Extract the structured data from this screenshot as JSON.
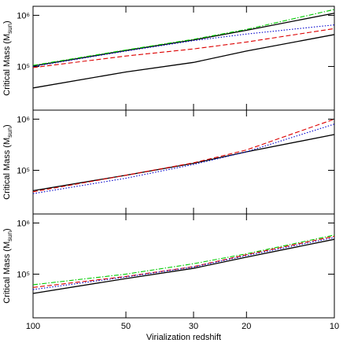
{
  "chart_data": [
    {
      "type": "line",
      "xscale": "log1p",
      "yscale": "log",
      "xlim": [
        100,
        10
      ],
      "xticks": [
        100,
        50,
        30,
        20,
        10
      ],
      "show_xtick_labels": false,
      "ylim": [
        14000,
        1500000
      ],
      "yticks": [
        {
          "value": 100000,
          "label": "10⁵"
        },
        {
          "value": 1000000,
          "label": "10⁶"
        }
      ],
      "y_label": {
        "text": "Critical Mass (M",
        "sub": "sun",
        "end": ")"
      },
      "x": [
        100,
        50,
        30,
        20,
        10
      ],
      "series": [
        {
          "color": "#000000",
          "style": "solid",
          "values": [
            38000,
            78000,
            120000,
            200000,
            420000
          ]
        },
        {
          "color": "#000000",
          "style": "solid",
          "values": [
            102000,
            205000,
            330000,
            510000,
            1100000
          ]
        },
        {
          "color": "#00cc00",
          "style": "dashdot",
          "values": [
            105000,
            210000,
            340000,
            530000,
            1300000
          ]
        },
        {
          "color": "#0000cc",
          "style": "dotted",
          "values": [
            100000,
            200000,
            320000,
            430000,
            650000
          ]
        },
        {
          "color": "#dd0000",
          "style": "dashed",
          "values": [
            95000,
            160000,
            220000,
            300000,
            550000
          ]
        }
      ]
    },
    {
      "type": "line",
      "xscale": "log1p",
      "yscale": "log",
      "xlim": [
        100,
        10
      ],
      "xticks": [
        100,
        50,
        30,
        20,
        10
      ],
      "show_xtick_labels": false,
      "ylim": [
        14000,
        1500000
      ],
      "yticks": [
        {
          "value": 100000,
          "label": "10⁵"
        },
        {
          "value": 1000000,
          "label": "10⁶"
        }
      ],
      "y_label": {
        "text": "Critical Mass (M",
        "sub": "sun",
        "end": ")"
      },
      "x": [
        100,
        50,
        30,
        20,
        10
      ],
      "series": [
        {
          "color": "#000000",
          "style": "solid",
          "values": [
            40000,
            80000,
            137000,
            230000,
            500000
          ]
        },
        {
          "color": "#dd0000",
          "style": "dashed",
          "values": [
            38000,
            80000,
            140000,
            250000,
            1000000
          ]
        },
        {
          "color": "#0000cc",
          "style": "dotted",
          "values": [
            35000,
            70000,
            130000,
            230000,
            800000
          ]
        }
      ]
    },
    {
      "type": "line",
      "xscale": "log1p",
      "yscale": "log",
      "xlim": [
        100,
        10
      ],
      "xticks": [
        100,
        50,
        30,
        20,
        10
      ],
      "show_xtick_labels": true,
      "ylim": [
        14000,
        1500000
      ],
      "yticks": [
        {
          "value": 100000,
          "label": "10⁵"
        },
        {
          "value": 1000000,
          "label": "10⁶"
        }
      ],
      "y_label": {
        "text": "Critical Mass (M",
        "sub": "sun",
        "end": ")"
      },
      "x_label": "Virialization redshift",
      "x": [
        100,
        50,
        30,
        20,
        10
      ],
      "series": [
        {
          "color": "#000000",
          "style": "solid",
          "values": [
            42000,
            82000,
            130000,
            215000,
            480000
          ]
        },
        {
          "color": "#00cc00",
          "style": "dashdot",
          "values": [
            62000,
            100000,
            160000,
            250000,
            580000
          ]
        },
        {
          "color": "#dd0000",
          "style": "dashed",
          "values": [
            55000,
            90000,
            140000,
            240000,
            550000
          ]
        },
        {
          "color": "#0000cc",
          "style": "dotted",
          "values": [
            50000,
            88000,
            138000,
            230000,
            520000
          ]
        }
      ]
    }
  ]
}
